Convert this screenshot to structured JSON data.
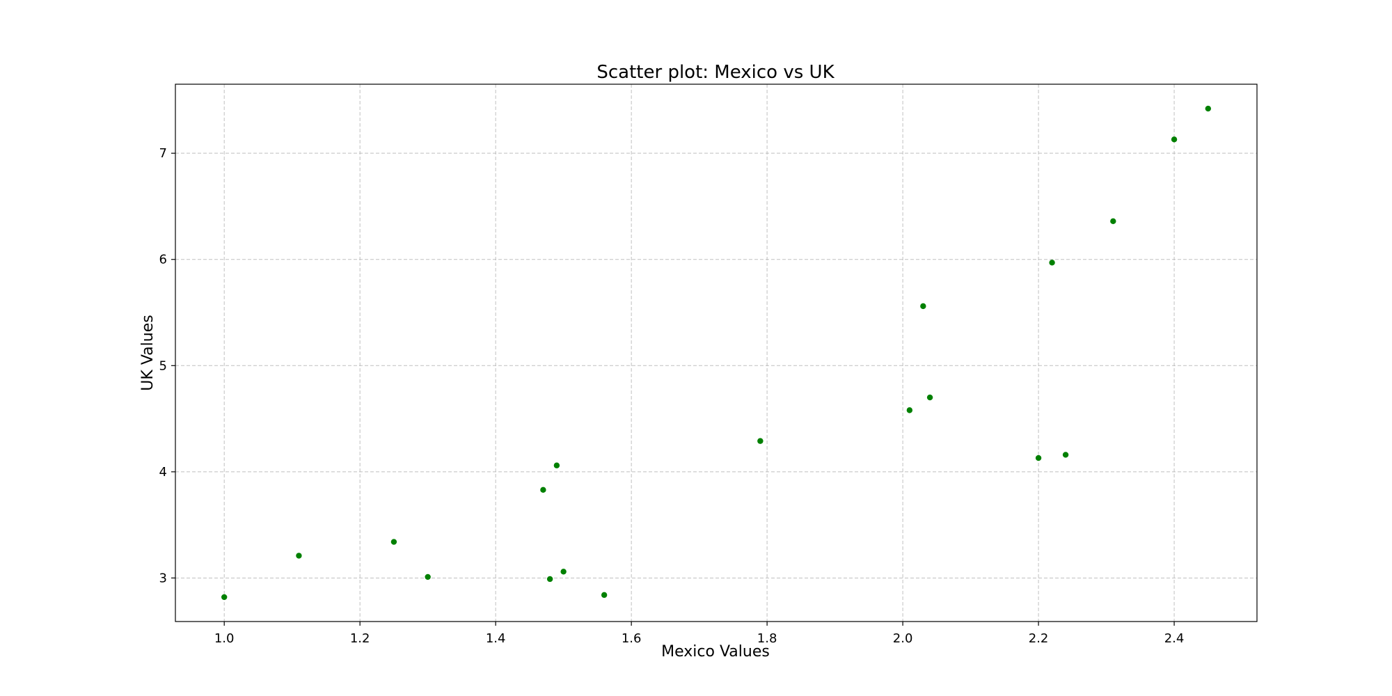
{
  "chart_data": {
    "type": "scatter",
    "title": "Scatter plot: Mexico vs UK",
    "xlabel": "Mexico Values",
    "ylabel": "UK Values",
    "xlim": [
      0.928,
      2.522
    ],
    "ylim": [
      2.59,
      7.65
    ],
    "xticks": [
      1.0,
      1.2,
      1.4,
      1.6,
      1.8,
      2.0,
      2.2,
      2.4
    ],
    "xtick_labels": [
      "1.0",
      "1.2",
      "1.4",
      "1.6",
      "1.8",
      "2.0",
      "2.2",
      "2.4"
    ],
    "yticks": [
      3,
      4,
      5,
      6,
      7
    ],
    "ytick_labels": [
      "3",
      "4",
      "5",
      "6",
      "7"
    ],
    "grid": true,
    "marker_color": "#008000",
    "points": [
      {
        "x": 1.0,
        "y": 2.82
      },
      {
        "x": 1.11,
        "y": 3.21
      },
      {
        "x": 1.25,
        "y": 3.34
      },
      {
        "x": 1.3,
        "y": 3.01
      },
      {
        "x": 1.47,
        "y": 3.83
      },
      {
        "x": 1.48,
        "y": 2.99
      },
      {
        "x": 1.49,
        "y": 4.06
      },
      {
        "x": 1.5,
        "y": 3.06
      },
      {
        "x": 1.56,
        "y": 2.84
      },
      {
        "x": 1.79,
        "y": 4.29
      },
      {
        "x": 2.01,
        "y": 4.58
      },
      {
        "x": 2.03,
        "y": 5.56
      },
      {
        "x": 2.04,
        "y": 4.7
      },
      {
        "x": 2.2,
        "y": 4.13
      },
      {
        "x": 2.22,
        "y": 5.97
      },
      {
        "x": 2.24,
        "y": 4.16
      },
      {
        "x": 2.31,
        "y": 6.36
      },
      {
        "x": 2.4,
        "y": 7.13
      },
      {
        "x": 2.45,
        "y": 7.42
      }
    ]
  }
}
